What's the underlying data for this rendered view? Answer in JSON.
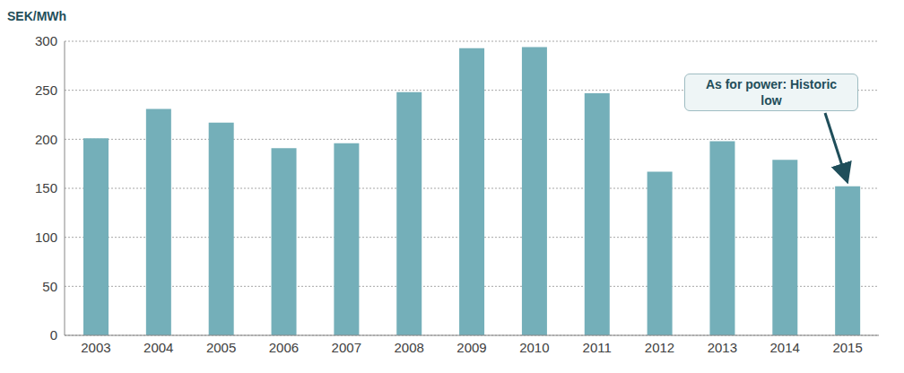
{
  "chart_data": {
    "type": "bar",
    "y_label": "SEK/MWh",
    "categories": [
      "2003",
      "2004",
      "2005",
      "2006",
      "2007",
      "2008",
      "2009",
      "2010",
      "2011",
      "2012",
      "2013",
      "2014",
      "2015"
    ],
    "values": [
      201,
      231,
      217,
      191,
      196,
      248,
      293,
      294,
      247,
      167,
      198,
      179,
      152
    ],
    "color": "#74afb9",
    "ylim": [
      0,
      300
    ],
    "yticks": [
      0,
      50,
      100,
      150,
      200,
      250,
      300
    ],
    "grid": true,
    "annotations": [
      {
        "text": "As for power: Historic low",
        "category": "2015"
      }
    ]
  }
}
